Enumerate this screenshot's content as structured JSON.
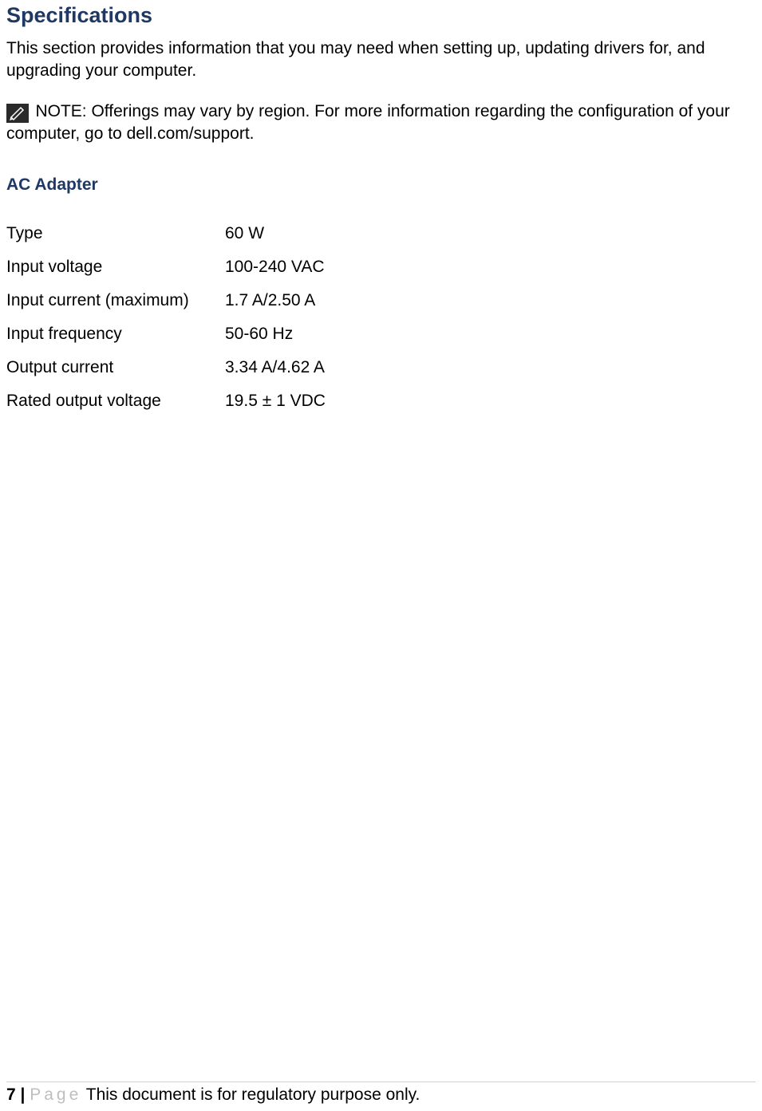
{
  "title": "Specifications",
  "intro": "This section provides information that you may need when setting up, updating drivers for, and upgrading your computer.",
  "note_label": "NOTE:",
  "note_text": " Offerings may vary by region. For more information regarding the configuration of your computer, go to dell.com/support.",
  "section_heading": "AC Adapter",
  "specs": [
    {
      "label": "Type",
      "value": "60 W"
    },
    {
      "label": "Input voltage",
      "value": "100-240 VAC"
    },
    {
      "label": "Input current (maximum)",
      "value": "1.7 A/2.50 A"
    },
    {
      "label": "Input frequency",
      "value": "50-60 Hz"
    },
    {
      "label": "Output current",
      "value": "3.34 A/4.62 A"
    },
    {
      "label": "Rated output voltage",
      "value": "19.5 ± 1 VDC"
    }
  ],
  "footer": {
    "page_number": "7",
    "separator": " | ",
    "page_label": "Page",
    "text": "  This document is for regulatory purpose only."
  },
  "colors": {
    "heading": "#1f3864",
    "body_text": "#000000",
    "footer_muted": "#bfbfbf",
    "page_bg": "#ffffff",
    "icon_bg": "#2a2a2a",
    "footer_border": "#d0d0d0"
  }
}
